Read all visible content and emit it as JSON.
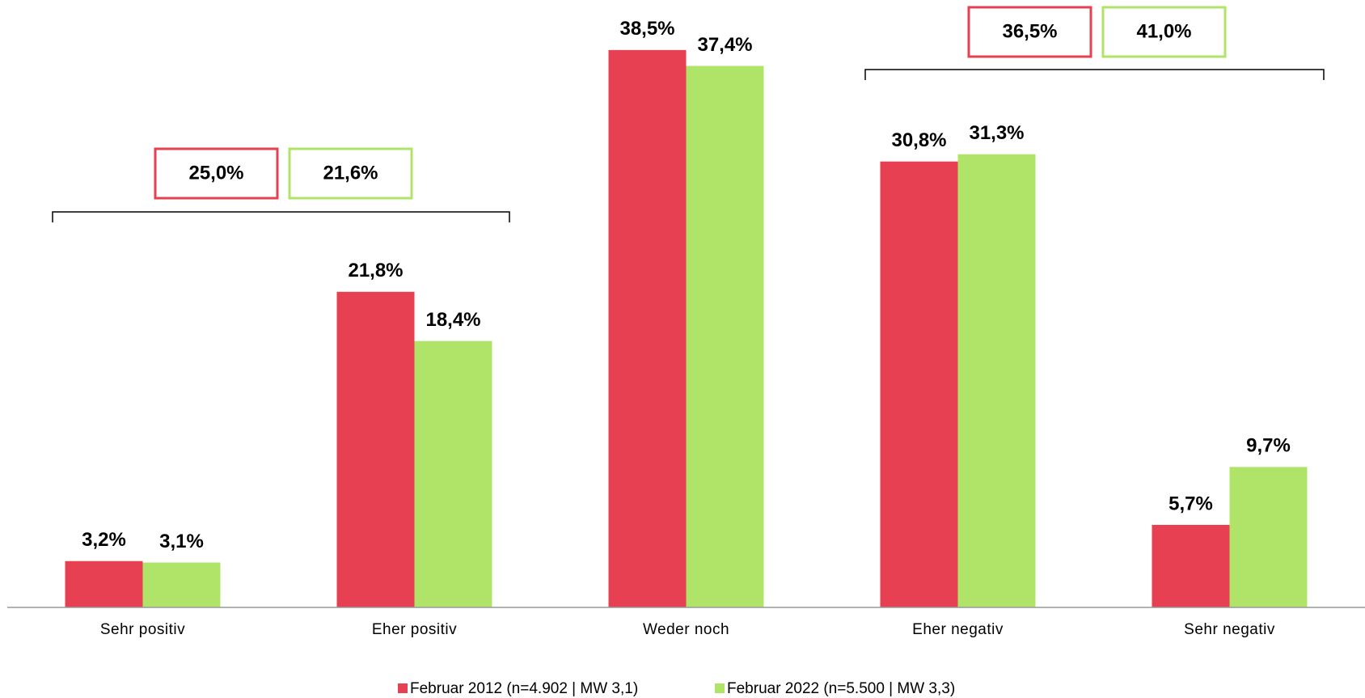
{
  "chart_data": {
    "type": "bar",
    "categories": [
      "Sehr positiv",
      "Eher positiv",
      "Weder noch",
      "Eher negativ",
      "Sehr negativ"
    ],
    "series": [
      {
        "name": "Februar 2012 (n=4.902 | MW 3,1)",
        "color": "#e64052",
        "values": [
          3.2,
          21.8,
          38.5,
          30.8,
          5.7
        ],
        "value_labels": [
          "3,2%",
          "21,8%",
          "38,5%",
          "30,8%",
          "5,7%"
        ]
      },
      {
        "name": "Februar 2022 (n=5.500 | MW 3,3)",
        "color": "#b0e468",
        "values": [
          3.1,
          18.4,
          37.4,
          31.3,
          9.7
        ],
        "value_labels": [
          "3,1%",
          "18,4%",
          "37,4%",
          "31,3%",
          "9,7%"
        ]
      }
    ],
    "annotations": [
      {
        "values": [
          25.0,
          21.6
        ],
        "labels": [
          "25,0%",
          "21,6%"
        ]
      },
      {
        "values": [
          36.5,
          41.0
        ],
        "labels": [
          "36,5%",
          "41,0%"
        ]
      }
    ],
    "legend": "bottom"
  }
}
